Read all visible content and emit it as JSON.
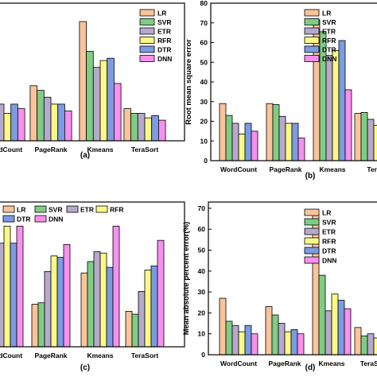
{
  "colors": {
    "LR": "#f9c49a",
    "SVR": "#7fcd84",
    "ETR": "#b7a9cd",
    "RFR": "#fbf986",
    "DTR": "#7b9be3",
    "DNN": "#f790ee"
  },
  "chart_data": [
    {
      "type": "bar",
      "panel_label": "(a)",
      "categories": [
        "WordCount",
        "PageRank",
        "Kmeans",
        "TeraSort"
      ],
      "series": [
        {
          "name": "LR",
          "values": [
            19,
            24,
            52,
            14
          ]
        },
        {
          "name": "SVR",
          "values": [
            15,
            22,
            39,
            12
          ]
        },
        {
          "name": "ETR",
          "values": [
            16,
            19,
            32,
            12
          ]
        },
        {
          "name": "RFR",
          "values": [
            12,
            16,
            35,
            10
          ]
        },
        {
          "name": "DTR",
          "values": [
            16,
            16,
            36,
            11
          ]
        },
        {
          "name": "DNN",
          "values": [
            14,
            13,
            25,
            9
          ]
        }
      ],
      "ylim": [
        0,
        60
      ],
      "ylabel": "",
      "legend": "top-right"
    },
    {
      "type": "bar",
      "panel_label": "(b)",
      "categories": [
        "WordCount",
        "PageRank",
        "Kmeans",
        "TeraSort"
      ],
      "category_labels": [
        "WordCount",
        "PageRank",
        "Kmeans",
        "Tera"
      ],
      "series": [
        {
          "name": "LR",
          "values": [
            29,
            29,
            71.5,
            24
          ]
        },
        {
          "name": "SVR",
          "values": [
            23,
            28.5,
            65.5,
            24.5
          ]
        },
        {
          "name": "ETR",
          "values": [
            19,
            22.5,
            53.5,
            21
          ]
        },
        {
          "name": "RFR",
          "values": [
            13.5,
            19,
            56,
            18
          ]
        },
        {
          "name": "DTR",
          "values": [
            19,
            19,
            61,
            20
          ]
        },
        {
          "name": "DNN",
          "values": [
            15,
            11.5,
            36,
            17
          ]
        }
      ],
      "yticks": [
        0,
        10,
        20,
        30,
        40,
        50,
        60,
        70,
        80
      ],
      "ylim": [
        0,
        80
      ],
      "ylabel": "Root mean square error",
      "legend": "top-right"
    },
    {
      "type": "bar",
      "panel_label": "(c)",
      "categories": [
        "WordCount",
        "PageRank",
        "Kmeans",
        "TeraSort"
      ],
      "series": [
        {
          "name": "LR",
          "values": [
            0.7,
            0.3,
            0.52,
            0.25
          ]
        },
        {
          "name": "SVR",
          "values": [
            0.56,
            0.31,
            0.6,
            0.23
          ]
        },
        {
          "name": "ETR",
          "values": [
            0.73,
            0.53,
            0.67,
            0.39
          ]
        },
        {
          "name": "RFR",
          "values": [
            0.85,
            0.64,
            0.66,
            0.54
          ]
        },
        {
          "name": "DTR",
          "values": [
            0.73,
            0.63,
            0.56,
            0.57
          ]
        },
        {
          "name": "DNN",
          "values": [
            0.85,
            0.72,
            0.85,
            0.75
          ]
        }
      ],
      "ylim": [
        0,
        1.02
      ],
      "ylabel": "",
      "legend": "top"
    },
    {
      "type": "bar",
      "panel_label": "(d)",
      "categories": [
        "WordCount",
        "PageRank",
        "Kmeans",
        "TeraSort"
      ],
      "series": [
        {
          "name": "LR",
          "values": [
            27,
            23,
            67,
            13
          ]
        },
        {
          "name": "SVR",
          "values": [
            16,
            19,
            38,
            9
          ]
        },
        {
          "name": "ETR",
          "values": [
            14,
            15,
            21,
            10
          ]
        },
        {
          "name": "RFR",
          "values": [
            11,
            11,
            29,
            8
          ]
        },
        {
          "name": "DTR",
          "values": [
            14,
            12,
            26,
            8
          ]
        },
        {
          "name": "DNN",
          "values": [
            10,
            10,
            22,
            7
          ]
        }
      ],
      "yticks": [
        0,
        10,
        20,
        30,
        40,
        50,
        60,
        70
      ],
      "ylim": [
        0,
        73
      ],
      "ylabel": "Mean absolute percent error(%)",
      "legend": "top-right"
    }
  ]
}
